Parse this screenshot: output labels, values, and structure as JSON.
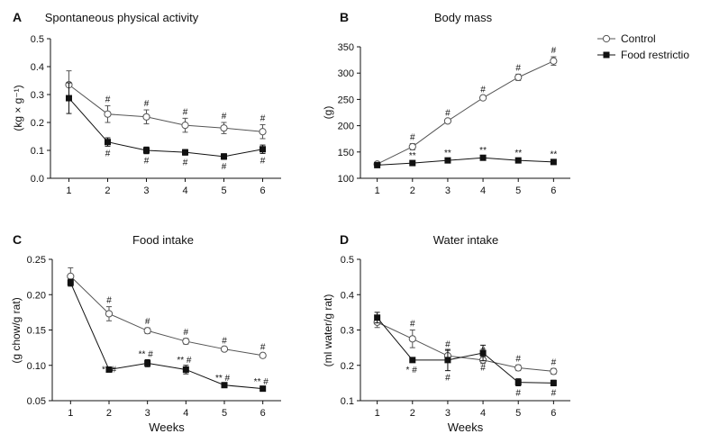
{
  "legend": [
    {
      "label": "Control",
      "marker": "open-circle"
    },
    {
      "label": "Food restrictio",
      "marker": "filled-square"
    }
  ],
  "chart_data": [
    {
      "letter": "A",
      "type": "line",
      "title": "Spontaneous physical activity",
      "xlabel": "",
      "ylabel": "(kg × g⁻¹)",
      "x": [
        1,
        2,
        3,
        4,
        5,
        6
      ],
      "xticks": [
        "1",
        "2",
        "3",
        "4",
        "5",
        "6"
      ],
      "ylim": [
        0.0,
        0.5
      ],
      "yticks": [
        "0.0",
        "0.1",
        "0.2",
        "0.3",
        "0.4",
        "0.5"
      ],
      "series": [
        {
          "name": "Control",
          "values": [
            0.335,
            0.23,
            0.22,
            0.19,
            0.18,
            0.167
          ],
          "err": [
            0.05,
            0.03,
            0.025,
            0.025,
            0.02,
            0.025
          ]
        },
        {
          "name": "Food restrictio",
          "values": [
            0.287,
            0.13,
            0.1,
            0.093,
            0.078,
            0.104
          ],
          "err": [
            0.055,
            0.015,
            0.012,
            0.01,
            0.01,
            0.015
          ]
        }
      ],
      "annotations": [
        {
          "series": 0,
          "x": 2,
          "text": "#",
          "pos": "above"
        },
        {
          "series": 0,
          "x": 3,
          "text": "#",
          "pos": "above"
        },
        {
          "series": 0,
          "x": 4,
          "text": "#",
          "pos": "above"
        },
        {
          "series": 0,
          "x": 5,
          "text": "#",
          "pos": "above"
        },
        {
          "series": 0,
          "x": 6,
          "text": "#",
          "pos": "above"
        },
        {
          "series": 1,
          "x": 2,
          "text": "#",
          "pos": "below"
        },
        {
          "series": 1,
          "x": 3,
          "text": "#",
          "pos": "below"
        },
        {
          "series": 1,
          "x": 4,
          "text": "#",
          "pos": "below"
        },
        {
          "series": 1,
          "x": 5,
          "text": "#",
          "pos": "below"
        },
        {
          "series": 1,
          "x": 6,
          "text": "#",
          "pos": "below"
        }
      ]
    },
    {
      "letter": "B",
      "type": "line",
      "title": "Body mass",
      "xlabel": "",
      "ylabel": "(g)",
      "x": [
        1,
        2,
        3,
        4,
        5,
        6
      ],
      "xticks": [
        "1",
        "2",
        "3",
        "4",
        "5",
        "6"
      ],
      "ylim": [
        100,
        350
      ],
      "yticks": [
        "100",
        "150",
        "200",
        "250",
        "300",
        "350"
      ],
      "series": [
        {
          "name": "Control",
          "values": [
            127,
            160,
            209,
            253,
            292,
            323
          ],
          "err": [
            2,
            6,
            3,
            4,
            6,
            8
          ]
        },
        {
          "name": "Food restrictio",
          "values": [
            125,
            129,
            134,
            139,
            134,
            131
          ],
          "err": [
            2,
            2,
            2,
            2,
            2,
            2
          ]
        }
      ],
      "annotations": [
        {
          "series": 0,
          "x": 2,
          "text": "#",
          "pos": "above"
        },
        {
          "series": 0,
          "x": 3,
          "text": "#",
          "pos": "above"
        },
        {
          "series": 0,
          "x": 4,
          "text": "#",
          "pos": "above"
        },
        {
          "series": 0,
          "x": 5,
          "text": "#",
          "pos": "above"
        },
        {
          "series": 0,
          "x": 6,
          "text": "#",
          "pos": "above"
        },
        {
          "series": 1,
          "x": 2,
          "text": "**",
          "pos": "above"
        },
        {
          "series": 1,
          "x": 3,
          "text": "**",
          "pos": "above"
        },
        {
          "series": 1,
          "x": 4,
          "text": "**",
          "pos": "above"
        },
        {
          "series": 1,
          "x": 5,
          "text": "**",
          "pos": "above"
        },
        {
          "series": 1,
          "x": 6,
          "text": "**",
          "pos": "above"
        }
      ]
    },
    {
      "letter": "C",
      "type": "line",
      "title": "Food intake",
      "xlabel": "Weeks",
      "ylabel": "(g chow/g rat)",
      "x": [
        1,
        2,
        3,
        4,
        5,
        6
      ],
      "xticks": [
        "1",
        "2",
        "3",
        "4",
        "5",
        "6"
      ],
      "ylim": [
        0.05,
        0.25
      ],
      "yticks": [
        "0.05",
        "0.10",
        "0.15",
        "0.20",
        "0.25"
      ],
      "series": [
        {
          "name": "Control",
          "values": [
            0.226,
            0.173,
            0.149,
            0.134,
            0.123,
            0.114
          ],
          "err": [
            0.012,
            0.01,
            0.004,
            0.004,
            0.003,
            0.003
          ]
        },
        {
          "name": "Food restrictio",
          "values": [
            0.217,
            0.094,
            0.103,
            0.094,
            0.072,
            0.067
          ],
          "err": [
            0.005,
            0.002,
            0.005,
            0.006,
            0.002,
            0.002
          ]
        }
      ],
      "annotations": [
        {
          "series": 0,
          "x": 2,
          "text": "#",
          "pos": "above"
        },
        {
          "series": 0,
          "x": 3,
          "text": "#",
          "pos": "above"
        },
        {
          "series": 0,
          "x": 4,
          "text": "#",
          "pos": "above"
        },
        {
          "series": 0,
          "x": 5,
          "text": "#",
          "pos": "above"
        },
        {
          "series": 0,
          "x": 6,
          "text": "#",
          "pos": "above"
        },
        {
          "series": 1,
          "x": 2,
          "text": "** #",
          "pos": "right"
        },
        {
          "series": 1,
          "x": 3,
          "text": "** #",
          "pos": "aboveright"
        },
        {
          "series": 1,
          "x": 4,
          "text": "** #",
          "pos": "aboveright"
        },
        {
          "series": 1,
          "x": 5,
          "text": "** #",
          "pos": "aboveright"
        },
        {
          "series": 1,
          "x": 6,
          "text": "** #",
          "pos": "aboveright"
        }
      ]
    },
    {
      "letter": "D",
      "type": "line",
      "title": "Water intake",
      "xlabel": "Weeks",
      "ylabel": "(ml water/g rat)",
      "x": [
        1,
        2,
        3,
        4,
        5,
        6
      ],
      "xticks": [
        "1",
        "2",
        "3",
        "4",
        "5",
        "6"
      ],
      "ylim": [
        0.1,
        0.5
      ],
      "yticks": [
        "0.1",
        "0.2",
        "0.3",
        "0.4",
        "0.5"
      ],
      "series": [
        {
          "name": "Control",
          "values": [
            0.322,
            0.275,
            0.227,
            0.215,
            0.193,
            0.183
          ],
          "err": [
            0.015,
            0.025,
            0.015,
            0.01,
            0.008,
            0.008
          ]
        },
        {
          "name": "Food restrictio",
          "values": [
            0.335,
            0.215,
            0.215,
            0.235,
            0.152,
            0.15
          ],
          "err": [
            0.015,
            0.005,
            0.03,
            0.022,
            0.01,
            0.008
          ]
        }
      ],
      "annotations": [
        {
          "series": 0,
          "x": 2,
          "text": "#",
          "pos": "above"
        },
        {
          "series": 0,
          "x": 3,
          "text": "#",
          "pos": "above"
        },
        {
          "series": 0,
          "x": 4,
          "text": "#",
          "pos": "above"
        },
        {
          "series": 0,
          "x": 5,
          "text": "#",
          "pos": "above"
        },
        {
          "series": 0,
          "x": 6,
          "text": "#",
          "pos": "above"
        },
        {
          "series": 1,
          "x": 2,
          "text": "* #",
          "pos": "belowleft"
        },
        {
          "series": 1,
          "x": 3,
          "text": "#",
          "pos": "below"
        },
        {
          "series": 1,
          "x": 4,
          "text": "#",
          "pos": "below"
        },
        {
          "series": 1,
          "x": 5,
          "text": "#",
          "pos": "below"
        },
        {
          "series": 1,
          "x": 6,
          "text": "#",
          "pos": "below"
        }
      ]
    }
  ]
}
